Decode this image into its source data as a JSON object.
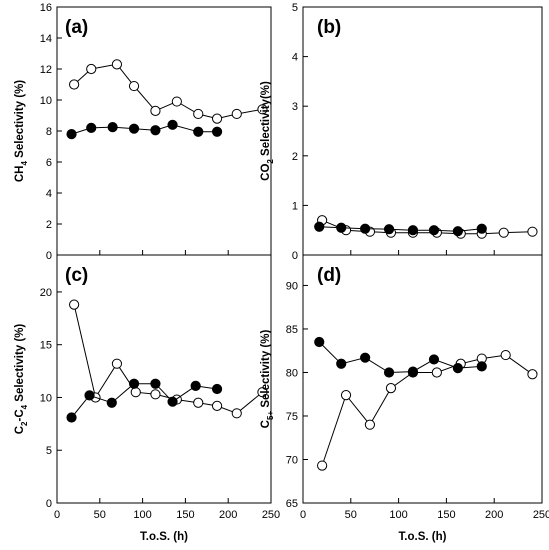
{
  "chart_data": [
    {
      "type": "line",
      "panel_label": "(a)",
      "ylabel_parts": [
        "CH",
        "4",
        " Selectivity (%)"
      ],
      "xlim": [
        0,
        250
      ],
      "ylim": [
        0,
        16
      ],
      "yticks": [
        0,
        2,
        4,
        6,
        8,
        10,
        12,
        14,
        16
      ],
      "series": [
        {
          "marker": "open",
          "x": [
            20,
            40,
            70,
            90,
            115,
            140,
            165,
            187,
            210,
            240
          ],
          "y": [
            11.0,
            12.0,
            12.3,
            10.9,
            9.3,
            9.9,
            9.1,
            8.8,
            9.1,
            9.4
          ]
        },
        {
          "marker": "filled",
          "x": [
            17,
            40,
            65,
            90,
            115,
            135,
            165,
            187
          ],
          "y": [
            7.8,
            8.2,
            8.25,
            8.15,
            8.05,
            8.4,
            7.95,
            7.95
          ]
        }
      ]
    },
    {
      "type": "line",
      "panel_label": "(b)",
      "ylabel_parts": [
        "CO",
        "2",
        " Selectivity(%)"
      ],
      "xlim": [
        0,
        250
      ],
      "ylim": [
        0,
        5
      ],
      "yticks": [
        0,
        1,
        2,
        3,
        4,
        5
      ],
      "series": [
        {
          "marker": "open",
          "x": [
            20,
            45,
            70,
            92,
            115,
            140,
            165,
            187,
            210,
            240
          ],
          "y": [
            0.7,
            0.5,
            0.47,
            0.45,
            0.45,
            0.45,
            0.43,
            0.43,
            0.45,
            0.47
          ]
        },
        {
          "marker": "filled",
          "x": [
            17,
            40,
            65,
            90,
            115,
            137,
            162,
            187
          ],
          "y": [
            0.57,
            0.55,
            0.53,
            0.52,
            0.5,
            0.5,
            0.48,
            0.53
          ]
        }
      ]
    },
    {
      "type": "line",
      "panel_label": "(c)",
      "ylabel_parts": [
        "C",
        "2",
        "-C",
        "4",
        " Selectivity (%)"
      ],
      "xlabel": "T.o.S. (h)",
      "xlim": [
        0,
        250
      ],
      "ylim": [
        0,
        23.5
      ],
      "yticks": [
        0,
        5,
        10,
        15,
        20
      ],
      "xticks": [
        0,
        50,
        100,
        150,
        200,
        250
      ],
      "series": [
        {
          "marker": "open",
          "x": [
            20,
            45,
            70,
            92,
            115,
            140,
            165,
            187,
            210,
            240
          ],
          "y": [
            18.8,
            10.0,
            13.2,
            10.5,
            10.3,
            9.8,
            9.5,
            9.2,
            8.5,
            10.5
          ]
        },
        {
          "marker": "filled",
          "x": [
            17,
            38,
            64,
            90,
            115,
            135,
            162,
            187
          ],
          "y": [
            8.1,
            10.2,
            9.5,
            11.3,
            11.3,
            9.6,
            11.1,
            10.8
          ]
        }
      ]
    },
    {
      "type": "line",
      "panel_label": "(d)",
      "ylabel_parts": [
        "C",
        "5+",
        " Selectivity (%)"
      ],
      "xlabel": "T.o.S. (h)",
      "xlim": [
        0,
        250
      ],
      "ylim": [
        65,
        93.5
      ],
      "yticks": [
        65,
        70,
        75,
        80,
        85,
        90
      ],
      "xticks": [
        0,
        50,
        100,
        150,
        200,
        250
      ],
      "series": [
        {
          "marker": "open",
          "x": [
            20,
            45,
            70,
            92,
            115,
            140,
            165,
            187,
            212,
            240
          ],
          "y": [
            69.3,
            77.4,
            74.0,
            78.2,
            80.0,
            80.0,
            81.0,
            81.6,
            82.0,
            79.8
          ]
        },
        {
          "marker": "filled",
          "x": [
            17,
            40,
            65,
            90,
            115,
            137,
            162,
            187
          ],
          "y": [
            83.5,
            81.0,
            81.7,
            80.0,
            80.1,
            81.5,
            80.5,
            80.7
          ]
        }
      ]
    }
  ]
}
